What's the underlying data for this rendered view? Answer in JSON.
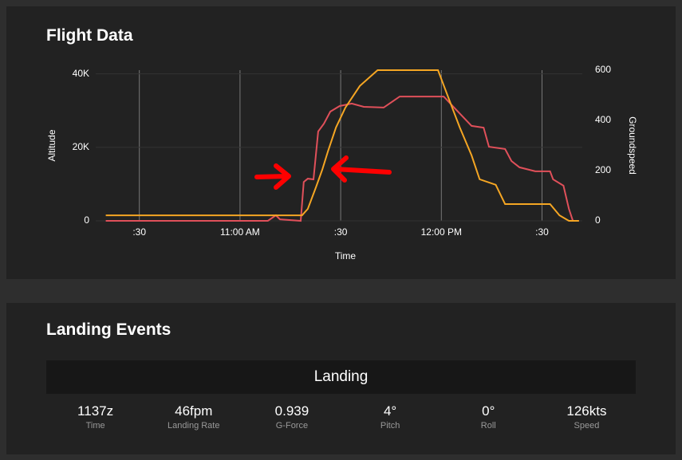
{
  "chart_data": {
    "type": "line",
    "title": "Flight Data",
    "x_label": "Time",
    "y_label": "Altitude",
    "y2_label": "Groundspeed",
    "xlim": [
      617,
      762
    ],
    "xticks": [
      {
        "value": 630,
        "label": ":30"
      },
      {
        "value": 660,
        "label": "11:00 AM"
      },
      {
        "value": 690,
        "label": ":30"
      },
      {
        "value": 720,
        "label": "12:00 PM"
      },
      {
        "value": 750,
        "label": ":30"
      }
    ],
    "ylim": [
      0,
      41000
    ],
    "yticks": [
      0,
      {
        "value": 20000,
        "label": "20K"
      },
      {
        "value": 40000,
        "label": "40K"
      }
    ],
    "y2lim": [
      0,
      600
    ],
    "y2ticks": [
      0,
      200,
      400,
      600
    ],
    "grid": true,
    "series": [
      {
        "color": "#f5a623",
        "x": [
          620,
          678.5,
          680.2,
          682.6,
          684.5,
          686.2,
          688.6,
          691.4,
          695.7,
          701,
          719,
          721.9,
          725.5,
          729,
          731.4,
          736.2,
          739,
          744.5,
          752.4,
          755.2,
          758,
          761
        ],
        "values": [
          1500,
          1500,
          3250,
          9100,
          13900,
          18900,
          25400,
          30800,
          36700,
          41000,
          41000,
          34000,
          25400,
          17800,
          11300,
          9800,
          4550,
          4550,
          4550,
          1500,
          0,
          0
        ]
      },
      {
        "color": "#e0505a",
        "axis": "y2",
        "x": [
          620,
          668.3,
          670.7,
          671.9,
          678.1,
          679,
          680.2,
          681.9,
          683.3,
          685,
          686.9,
          689.7,
          693.3,
          696.9,
          702.8,
          707.6,
          720.7,
          723.8,
          729,
          732.6,
          734.2,
          739,
          740.9,
          743.3,
          748,
          752.4,
          753.3,
          756.4,
          758,
          759.2,
          761
        ],
        "values": [
          0,
          0,
          22,
          6,
          0,
          155,
          168,
          165,
          356,
          387,
          435,
          457,
          467,
          454,
          451,
          495,
          495,
          451,
          378,
          371,
          295,
          286,
          238,
          213,
          197,
          197,
          165,
          140,
          48,
          0,
          0
        ]
      }
    ]
  },
  "landing_events": {
    "title": "Landing Events",
    "header": "Landing",
    "items": [
      {
        "value": "1137z",
        "label": "Time"
      },
      {
        "value": "46fpm",
        "label": "Landing Rate"
      },
      {
        "value": "0.939",
        "label": "G-Force"
      },
      {
        "value": "4°",
        "label": "Pitch"
      },
      {
        "value": "0°",
        "label": "Roll"
      },
      {
        "value": "126kts",
        "label": "Speed"
      }
    ]
  }
}
